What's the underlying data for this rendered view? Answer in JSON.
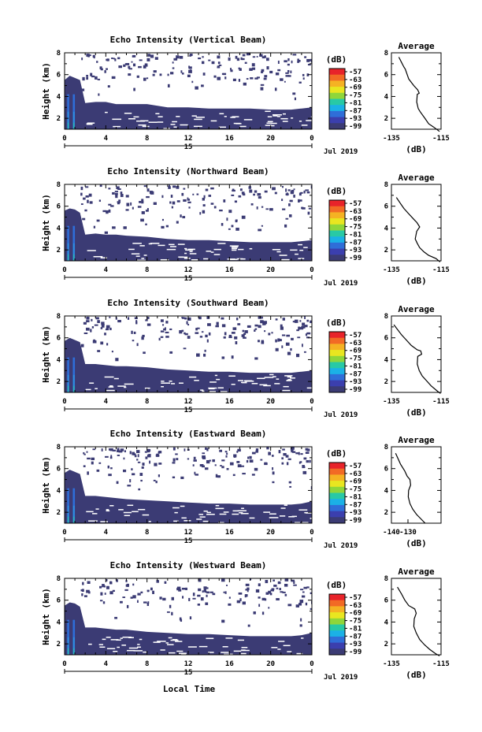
{
  "figure": {
    "date_label": "Jul 2019",
    "xlabel": "Local Time",
    "colorbar_title": "(dB)",
    "colorbar_ticks": [
      "-57",
      "-63",
      "-69",
      "-75",
      "-81",
      "-87",
      "-93",
      "-99"
    ],
    "colorbar_colors": [
      "#e8232a",
      "#f26a25",
      "#f5b223",
      "#e9e620",
      "#8fd63a",
      "#28c9a5",
      "#1bb1e6",
      "#2f6ed8",
      "#3b3fae",
      "#3b3b74"
    ],
    "profile_title": "Average",
    "profile_xlabel": "(dB)",
    "day_label": "15",
    "colors": {
      "low_echo": "#3b3b74",
      "near_ground_echo": "#2f8fe0",
      "profile_line": "#000000"
    }
  },
  "chart_data": [
    {
      "type": "heatmap",
      "title": "Echo Intensity (Vertical Beam)",
      "ylabel": "Height (km)",
      "xlim": [
        0,
        24
      ],
      "ylim": [
        1,
        8
      ],
      "x_ticks": [
        "0",
        "4",
        "8",
        "12",
        "16",
        "20",
        "0"
      ],
      "y_ticks": [
        "2",
        "4",
        "6",
        "8"
      ],
      "clim": [
        -99,
        -57
      ],
      "grid": false,
      "echo_top_km": [
        [
          0,
          5.5
        ],
        [
          0.5,
          5.9
        ],
        [
          1,
          5.7
        ],
        [
          1.5,
          5.5
        ],
        [
          2,
          3.4
        ],
        [
          3,
          3.5
        ],
        [
          4,
          3.5
        ],
        [
          5,
          3.3
        ],
        [
          6,
          3.3
        ],
        [
          8,
          3.3
        ],
        [
          10,
          3.0
        ],
        [
          12,
          3.0
        ],
        [
          14,
          2.9
        ],
        [
          16,
          2.9
        ],
        [
          18,
          2.9
        ],
        [
          20,
          2.8
        ],
        [
          22,
          2.8
        ],
        [
          23,
          2.9
        ],
        [
          24,
          3.0
        ]
      ],
      "profile": {
        "xlim": [
          -135,
          -115
        ],
        "x_ticks": [
          "-135",
          "-115"
        ],
        "y_ticks": [
          "2",
          "4",
          "6",
          "8"
        ],
        "points": [
          [
            -132,
            7.6
          ],
          [
            -130,
            6.7
          ],
          [
            -129.4,
            6.5
          ],
          [
            -128,
            5.6
          ],
          [
            -126,
            5.0
          ],
          [
            -124.4,
            4.6
          ],
          [
            -123.8,
            4.3
          ],
          [
            -124.6,
            4.2
          ],
          [
            -124.8,
            3.5
          ],
          [
            -124.2,
            2.9
          ],
          [
            -123.4,
            2.6
          ],
          [
            -121.5,
            2.0
          ],
          [
            -120,
            1.5
          ],
          [
            -118,
            1.2
          ],
          [
            -115.6,
            0.8
          ]
        ]
      }
    },
    {
      "type": "heatmap",
      "title": "Echo Intensity (Northward Beam)",
      "ylabel": "Height (km)",
      "xlim": [
        0,
        24
      ],
      "ylim": [
        1,
        8
      ],
      "x_ticks": [
        "0",
        "4",
        "8",
        "12",
        "16",
        "20",
        "0"
      ],
      "y_ticks": [
        "2",
        "4",
        "6",
        "8"
      ],
      "clim": [
        -99,
        -57
      ],
      "grid": false,
      "echo_top_km": [
        [
          0,
          5.6
        ],
        [
          0.5,
          5.8
        ],
        [
          1,
          5.7
        ],
        [
          1.5,
          5.4
        ],
        [
          2,
          3.4
        ],
        [
          3,
          3.5
        ],
        [
          4,
          3.4
        ],
        [
          5,
          3.4
        ],
        [
          6,
          3.3
        ],
        [
          8,
          3.2
        ],
        [
          10,
          3.0
        ],
        [
          12,
          2.9
        ],
        [
          14,
          2.9
        ],
        [
          16,
          2.8
        ],
        [
          18,
          2.7
        ],
        [
          20,
          2.7
        ],
        [
          22,
          2.7
        ],
        [
          23,
          2.8
        ],
        [
          24,
          2.9
        ]
      ],
      "profile": {
        "xlim": [
          -135,
          -115
        ],
        "x_ticks": [
          "-135",
          "-115"
        ],
        "y_ticks": [
          "2",
          "4",
          "6",
          "8"
        ],
        "points": [
          [
            -133,
            6.8
          ],
          [
            -131.5,
            6.3
          ],
          [
            -130,
            5.8
          ],
          [
            -128,
            5.3
          ],
          [
            -126,
            4.8
          ],
          [
            -124.7,
            4.5
          ],
          [
            -123.6,
            4.1
          ],
          [
            -124.8,
            3.7
          ],
          [
            -125.4,
            3.0
          ],
          [
            -124.6,
            2.6
          ],
          [
            -123.6,
            2.2
          ],
          [
            -121.8,
            1.8
          ],
          [
            -120,
            1.5
          ],
          [
            -117,
            1.2
          ],
          [
            -115.4,
            0.9
          ]
        ]
      }
    },
    {
      "type": "heatmap",
      "title": "Echo Intensity (Southward Beam)",
      "ylabel": "Height (km)",
      "xlim": [
        0,
        24
      ],
      "ylim": [
        1,
        8
      ],
      "x_ticks": [
        "0",
        "4",
        "8",
        "12",
        "16",
        "20",
        "0"
      ],
      "y_ticks": [
        "2",
        "4",
        "6",
        "8"
      ],
      "clim": [
        -99,
        -57
      ],
      "grid": false,
      "echo_top_km": [
        [
          0,
          5.7
        ],
        [
          0.5,
          6.0
        ],
        [
          1,
          5.8
        ],
        [
          1.5,
          5.6
        ],
        [
          2,
          3.6
        ],
        [
          3,
          3.6
        ],
        [
          4,
          3.5
        ],
        [
          5,
          3.4
        ],
        [
          6,
          3.4
        ],
        [
          8,
          3.3
        ],
        [
          10,
          3.1
        ],
        [
          12,
          3.0
        ],
        [
          14,
          2.9
        ],
        [
          16,
          2.9
        ],
        [
          18,
          2.8
        ],
        [
          20,
          2.8
        ],
        [
          22,
          2.8
        ],
        [
          23,
          2.9
        ],
        [
          24,
          3.0
        ]
      ],
      "profile": {
        "xlim": [
          -135,
          -115
        ],
        "x_ticks": [
          "-135",
          "-115"
        ],
        "y_ticks": [
          "2",
          "4",
          "6",
          "8"
        ],
        "points": [
          [
            -134,
            7.2
          ],
          [
            -131,
            6.3
          ],
          [
            -129,
            5.8
          ],
          [
            -127,
            5.3
          ],
          [
            -124.6,
            4.9
          ],
          [
            -123.2,
            4.8
          ],
          [
            -122.8,
            4.5
          ],
          [
            -124.4,
            4.3
          ],
          [
            -124.6,
            3.6
          ],
          [
            -123.8,
            3.0
          ],
          [
            -122.6,
            2.5
          ],
          [
            -120.6,
            2.0
          ],
          [
            -119,
            1.6
          ],
          [
            -116.4,
            1.1
          ],
          [
            -115.2,
            0.9
          ]
        ]
      }
    },
    {
      "type": "heatmap",
      "title": "Echo Intensity (Eastward Beam)",
      "ylabel": "Height (km)",
      "xlim": [
        0,
        24
      ],
      "ylim": [
        1,
        8
      ],
      "x_ticks": [
        "0",
        "4",
        "8",
        "12",
        "16",
        "20",
        "0"
      ],
      "y_ticks": [
        "2",
        "4",
        "6",
        "8"
      ],
      "clim": [
        -99,
        -57
      ],
      "grid": false,
      "echo_top_km": [
        [
          0,
          5.6
        ],
        [
          0.5,
          5.9
        ],
        [
          1,
          5.7
        ],
        [
          1.5,
          5.5
        ],
        [
          2,
          3.5
        ],
        [
          3,
          3.5
        ],
        [
          4,
          3.4
        ],
        [
          5,
          3.3
        ],
        [
          6,
          3.2
        ],
        [
          8,
          3.1
        ],
        [
          10,
          3.0
        ],
        [
          12,
          2.9
        ],
        [
          14,
          2.8
        ],
        [
          16,
          2.8
        ],
        [
          18,
          2.7
        ],
        [
          20,
          2.7
        ],
        [
          22,
          2.7
        ],
        [
          23,
          2.8
        ],
        [
          24,
          3.0
        ]
      ],
      "profile": {
        "xlim": [
          -140,
          -110
        ],
        "x_ticks": [
          "-140",
          "-130"
        ],
        "y_ticks": [
          "2",
          "4",
          "6",
          "8"
        ],
        "points": [
          [
            -137.5,
            7.4
          ],
          [
            -134.5,
            6.4
          ],
          [
            -132,
            5.8
          ],
          [
            -130.5,
            5.3
          ],
          [
            -128.8,
            5.0
          ],
          [
            -128.4,
            4.5
          ],
          [
            -129.6,
            4.0
          ],
          [
            -129.8,
            3.4
          ],
          [
            -128.8,
            2.8
          ],
          [
            -127.2,
            2.3
          ],
          [
            -124.8,
            1.8
          ],
          [
            -122.2,
            1.4
          ],
          [
            -119.6,
            1.0
          ]
        ]
      }
    },
    {
      "type": "heatmap",
      "title": "Echo Intensity (Westward Beam)",
      "ylabel": "Height (km)",
      "xlim": [
        0,
        24
      ],
      "ylim": [
        1,
        8
      ],
      "x_ticks": [
        "0",
        "4",
        "8",
        "12",
        "16",
        "20",
        "0"
      ],
      "y_ticks": [
        "2",
        "4",
        "6",
        "8"
      ],
      "clim": [
        -99,
        -57
      ],
      "grid": false,
      "echo_top_km": [
        [
          0,
          5.5
        ],
        [
          0.5,
          5.8
        ],
        [
          1,
          5.7
        ],
        [
          1.5,
          5.4
        ],
        [
          2,
          3.5
        ],
        [
          3,
          3.5
        ],
        [
          4,
          3.4
        ],
        [
          5,
          3.3
        ],
        [
          6,
          3.3
        ],
        [
          8,
          3.1
        ],
        [
          10,
          3.0
        ],
        [
          12,
          2.9
        ],
        [
          14,
          2.9
        ],
        [
          16,
          2.8
        ],
        [
          18,
          2.7
        ],
        [
          20,
          2.7
        ],
        [
          22,
          2.7
        ],
        [
          23,
          2.8
        ],
        [
          24,
          3.0
        ]
      ],
      "profile": {
        "xlim": [
          -135,
          -115
        ],
        "x_ticks": [
          "-135",
          "-115"
        ],
        "y_ticks": [
          "2",
          "4",
          "6",
          "8"
        ],
        "points": [
          [
            -132.6,
            7.2
          ],
          [
            -131,
            6.6
          ],
          [
            -129.6,
            6.0
          ],
          [
            -128,
            5.5
          ],
          [
            -125.6,
            5.2
          ],
          [
            -125,
            4.8
          ],
          [
            -125.8,
            4.3
          ],
          [
            -126,
            3.6
          ],
          [
            -125,
            3.0
          ],
          [
            -123.6,
            2.4
          ],
          [
            -121.6,
            1.9
          ],
          [
            -119.6,
            1.5
          ],
          [
            -117.2,
            1.1
          ],
          [
            -115.6,
            0.9
          ]
        ]
      }
    }
  ]
}
